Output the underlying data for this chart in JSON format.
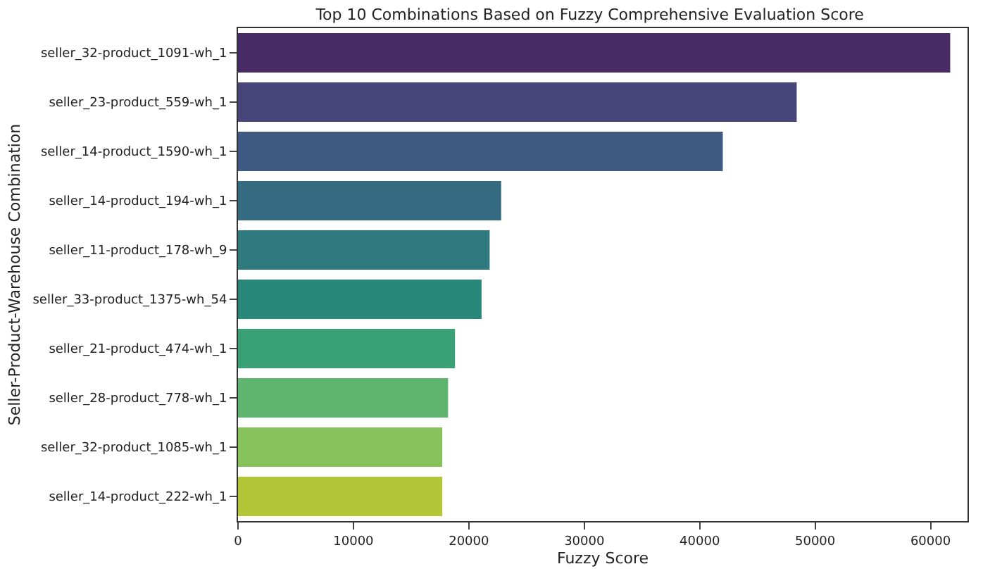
{
  "chart_data": {
    "type": "bar",
    "orientation": "horizontal",
    "title": "Top 10 Combinations Based on Fuzzy Comprehensive Evaluation Score",
    "xlabel": "Fuzzy Score",
    "ylabel": "Seller-Product-Warehouse Combination",
    "categories": [
      "seller_32-product_1091-wh_1",
      "seller_23-product_559-wh_1",
      "seller_14-product_1590-wh_1",
      "seller_14-product_194-wh_1",
      "seller_11-product_178-wh_9",
      "seller_33-product_1375-wh_54",
      "seller_21-product_474-wh_1",
      "seller_28-product_778-wh_1",
      "seller_32-product_1085-wh_1",
      "seller_14-product_222-wh_1"
    ],
    "values": [
      61700,
      48400,
      42000,
      22800,
      21800,
      21100,
      18800,
      18200,
      17700,
      17700
    ],
    "colors": [
      "#482a64",
      "#48457b",
      "#3f5a82",
      "#346b80",
      "#2e7a7f",
      "#2a887b",
      "#3aa076",
      "#5fb46f",
      "#88c25c",
      "#b2c637"
    ],
    "xlim": [
      0,
      63200
    ],
    "xticks": [
      0,
      10000,
      20000,
      30000,
      40000,
      50000,
      60000
    ]
  }
}
